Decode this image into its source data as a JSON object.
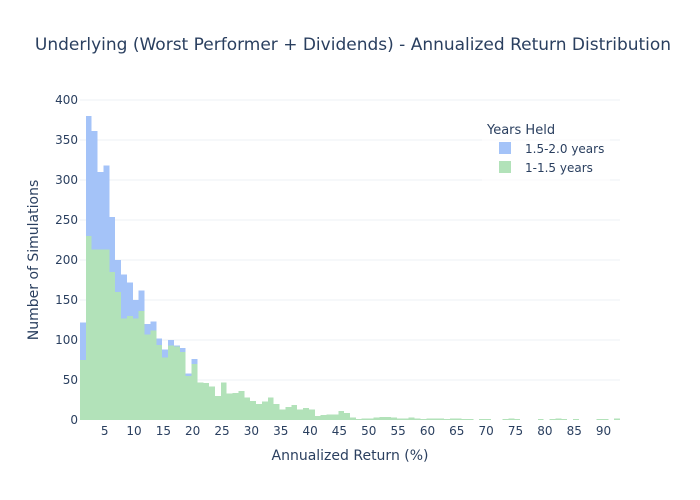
{
  "chart_data": {
    "type": "bar",
    "barmode": "overlay",
    "title": "Underlying (Worst Performer + Dividends) - Annualized Return Distribution",
    "xlabel": "Annualized Return (%)",
    "ylabel": "Number of Simulations",
    "xlim": [
      0.8,
      92.8
    ],
    "ylim": [
      0,
      400
    ],
    "bin_start": 0.8,
    "bin_width": 1,
    "x_ticks": [
      5,
      10,
      15,
      20,
      25,
      30,
      35,
      40,
      45,
      50,
      55,
      60,
      65,
      70,
      75,
      80,
      85,
      90
    ],
    "y_ticks": [
      0,
      50,
      100,
      150,
      200,
      250,
      300,
      350,
      400
    ],
    "legend": {
      "title": "Years Held",
      "position": "top-right"
    },
    "grid": true,
    "series": [
      {
        "name": "1.5-2.0 years",
        "color": "#a4c3f8",
        "values": [
          122,
          380,
          361,
          310,
          318,
          254,
          200,
          182,
          172,
          150,
          162,
          120,
          123,
          102,
          88,
          100,
          93,
          90,
          58,
          76,
          47,
          46,
          42,
          30,
          47,
          33,
          34,
          36,
          28,
          24,
          20,
          23,
          28,
          20,
          13,
          16,
          19,
          13,
          15,
          13,
          5,
          6,
          7,
          7,
          11,
          9,
          3,
          1,
          2,
          2,
          3,
          4,
          4,
          3,
          2,
          2,
          3,
          2,
          1,
          2,
          2,
          2,
          1,
          2,
          2,
          1,
          1,
          0,
          1,
          1,
          0,
          0,
          1,
          2,
          1,
          0,
          0,
          0,
          1,
          0,
          1,
          2,
          1,
          0,
          1,
          0,
          0,
          0,
          1,
          1,
          0,
          2
        ]
      },
      {
        "name": "1-1.5 years",
        "color": "#b2e2b9",
        "values": [
          75,
          230,
          213,
          213,
          213,
          185,
          160,
          127,
          130,
          127,
          136,
          107,
          112,
          94,
          78,
          93,
          92,
          85,
          55,
          70,
          47,
          46,
          42,
          30,
          47,
          33,
          34,
          36,
          28,
          24,
          20,
          23,
          28,
          20,
          13,
          16,
          19,
          13,
          15,
          13,
          5,
          6,
          7,
          7,
          11,
          9,
          3,
          1,
          2,
          2,
          3,
          4,
          4,
          3,
          2,
          2,
          3,
          2,
          1,
          2,
          2,
          2,
          1,
          2,
          2,
          1,
          1,
          0,
          1,
          1,
          0,
          0,
          1,
          2,
          1,
          0,
          0,
          0,
          1,
          0,
          1,
          2,
          1,
          0,
          1,
          0,
          0,
          0,
          1,
          1,
          0,
          2
        ]
      }
    ]
  }
}
